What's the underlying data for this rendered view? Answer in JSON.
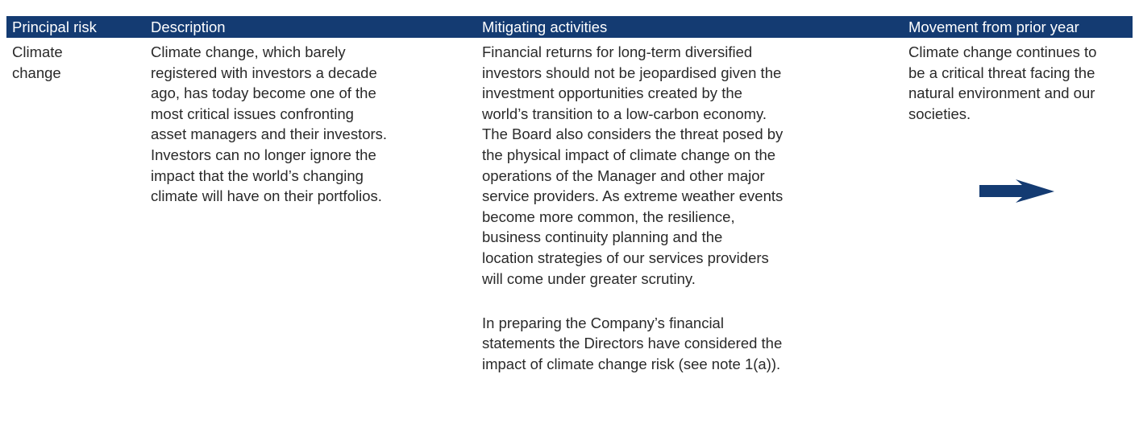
{
  "table": {
    "headers": [
      "Principal risk",
      "Description",
      "Mitigating activities",
      "Movement from prior year"
    ],
    "rows": [
      [
        [
          [
            "Climate",
            "change"
          ]
        ],
        [
          [
            "Climate change, which barely",
            "registered with investors a decade",
            "ago, has today become one of the",
            "most critical issues confronting",
            "asset managers and their investors.",
            "Investors can no longer ignore the",
            "impact that the world’s changing",
            "climate will have on their portfolios."
          ]
        ],
        [
          [
            "Financial returns for long-term diversified",
            "investors should not be jeopardised given the",
            "investment opportunities created by the",
            "world’s transition to a low-carbon economy.",
            "The Board also considers the threat posed by",
            "the physical impact of climate change on the",
            "operations of the Manager and other major",
            "service providers. As extreme weather events",
            "become more common, the resilience,",
            "business continuity planning and the",
            "location strategies of our services providers",
            "will come under greater scrutiny."
          ],
          [
            "In preparing the Company’s financial",
            "statements the Directors have considered the",
            "impact of climate change risk (see note 1(a))."
          ]
        ],
        [
          [
            "Climate change continues to",
            "be a critical threat facing the",
            "natural environment and our",
            "societies."
          ]
        ]
      ]
    ]
  }
}
